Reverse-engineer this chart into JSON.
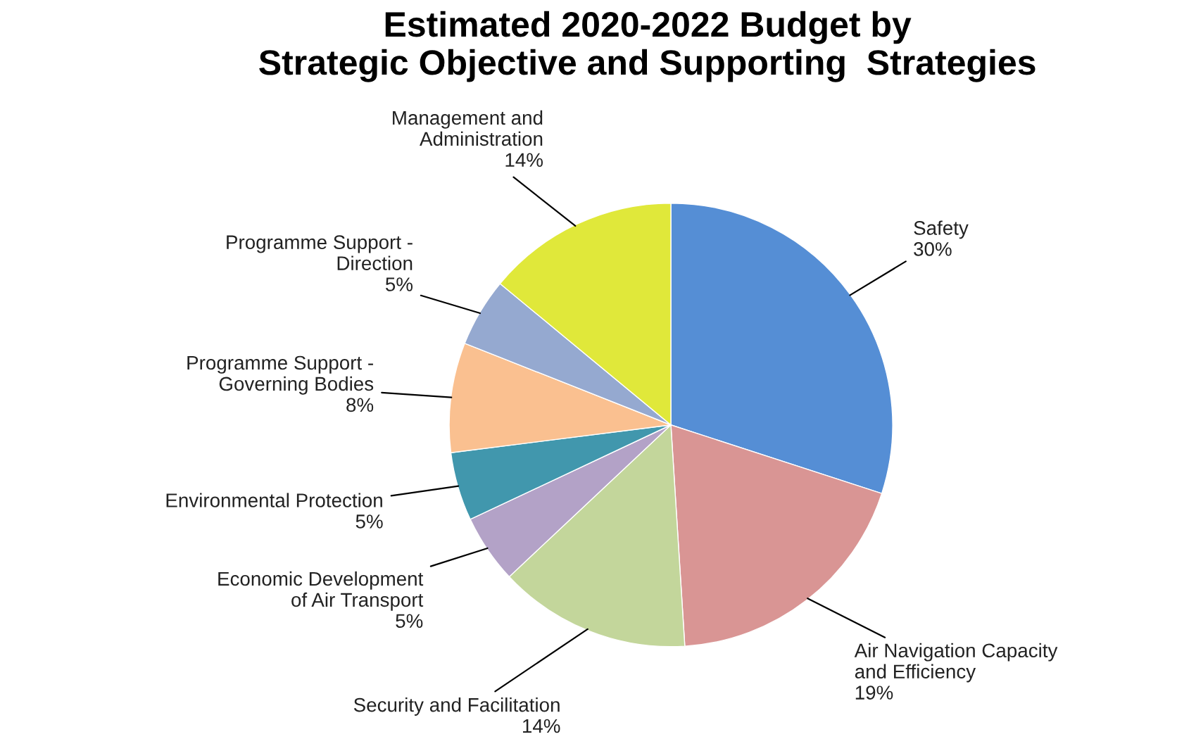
{
  "chart_data": {
    "type": "pie",
    "title": "Estimated 2020-2022 Budget by\nStrategic Objective and Supporting  Strategies",
    "categories": [
      "Safety",
      "Air Navigation Capacity\nand Efficiency",
      "Security and Facilitation",
      "Economic Development\nof Air Transport",
      "Environmental Protection",
      "Programme Support -\nGoverning Bodies",
      "Programme Support -\nDirection",
      "Management and\nAdministration"
    ],
    "values": [
      30,
      19,
      14,
      5,
      5,
      8,
      5,
      14
    ],
    "value_labels": [
      "30%",
      "19%",
      "14%",
      "5%",
      "5%",
      "8%",
      "5%",
      "14%"
    ],
    "colors": [
      "#558ed5",
      "#d99594",
      "#c3d69b",
      "#b3a2c7",
      "#4197ad",
      "#fac090",
      "#95a9d0",
      "#e0e83a"
    ],
    "legend": false
  }
}
